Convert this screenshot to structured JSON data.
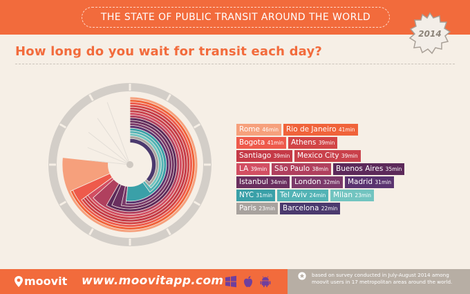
{
  "header": {
    "title": "THE STATE OF PUBLIC TRANSIT AROUND THE WORLD",
    "badge_year": "2014"
  },
  "question": "How long do you wait for transit each day?",
  "chart_data": {
    "type": "radial-bar",
    "title": "How long do you wait for transit each day?",
    "unit": "min",
    "categories": [
      "Rome",
      "Rio de Janeiro",
      "Bogota",
      "Athens",
      "Santiago",
      "Mexico City",
      "LA",
      "São Paulo",
      "Buenos Aires",
      "Istanbul",
      "London",
      "Madrid",
      "NYC",
      "Tel Aviv",
      "Milan",
      "Paris",
      "Barcelona"
    ],
    "values": [
      46,
      41,
      41,
      39,
      39,
      39,
      39,
      38,
      35,
      34,
      32,
      31,
      31,
      24,
      23,
      23,
      22
    ],
    "labels": [
      {
        "city": "Rome",
        "mins": "46min"
      },
      {
        "city": "Rio de Janeiro",
        "mins": "41min"
      },
      {
        "city": "Bogota",
        "mins": "41min"
      },
      {
        "city": "Athens",
        "mins": "39min"
      },
      {
        "city": "Santiago",
        "mins": "39min"
      },
      {
        "city": "Mexico City",
        "mins": "39min"
      },
      {
        "city": "LA",
        "mins": "39min"
      },
      {
        "city": "São Paulo",
        "mins": "38min"
      },
      {
        "city": "Buenos Aires",
        "mins": "35min"
      },
      {
        "city": "Istanbul",
        "mins": "34min"
      },
      {
        "city": "London",
        "mins": "32min"
      },
      {
        "city": "Madrid",
        "mins": "31min"
      },
      {
        "city": "NYC",
        "mins": "31min"
      },
      {
        "city": "Tel Aviv",
        "mins": "24min"
      },
      {
        "city": "Milan",
        "mins": "23min"
      },
      {
        "city": "Paris",
        "mins": "23min"
      },
      {
        "city": "Barcelona",
        "mins": "22min"
      }
    ],
    "colors": [
      "#f6a07c",
      "#f0633a",
      "#ee5a4b",
      "#d24546",
      "#c53a47",
      "#c9414b",
      "#d24e62",
      "#b0405e",
      "#5c2a5a",
      "#6a2f5f",
      "#7b3a6a",
      "#5a3470",
      "#3aa0a8",
      "#52b3b5",
      "#72c4c0",
      "#a8a29e",
      "#4b3a6e"
    ],
    "scale_max_minutes": 60
  },
  "footer": {
    "logo": "moovit",
    "url": "www.moovitapp.com",
    "store_icons": [
      "windows-icon",
      "apple-icon",
      "android-icon"
    ],
    "note": "based on survey conducted in July-August 2014 among moovit users in 17 metropolitan areas around the world."
  }
}
